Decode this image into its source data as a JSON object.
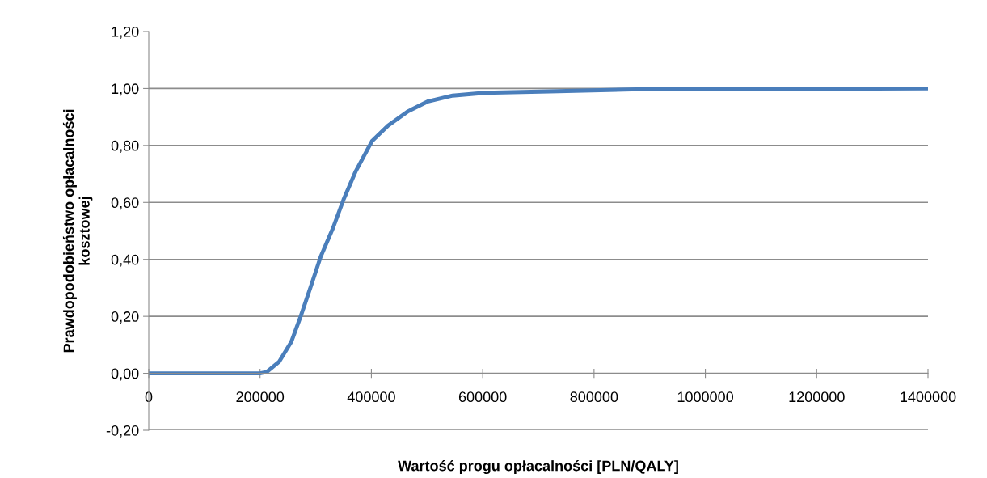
{
  "chart_data": {
    "type": "line",
    "xlabel": "Wartość progu opłacalności [PLN/QALY]",
    "ylabel": "Prawdopodobieństwo opłacalności\nkosztowej",
    "x": [
      0,
      200000,
      212000,
      234000,
      256000,
      273000,
      292000,
      309000,
      331000,
      350000,
      372000,
      401000,
      430000,
      466000,
      502000,
      546000,
      604000,
      720000,
      895000,
      1400000
    ],
    "series": [
      {
        "color": "#4a7ebb",
        "values": [
          0,
          0,
          0.005,
          0.04,
          0.11,
          0.2,
          0.31,
          0.41,
          0.51,
          0.61,
          0.71,
          0.815,
          0.87,
          0.92,
          0.955,
          0.975,
          0.985,
          0.99,
          0.998,
          1.0
        ]
      }
    ],
    "xlim": [
      0,
      1400000
    ],
    "xticks": [
      0,
      200000,
      400000,
      600000,
      800000,
      1000000,
      1200000,
      1400000
    ],
    "ylim": [
      -0.2,
      1.2
    ],
    "yticks": [
      {
        "value": -0.2,
        "label": "-0,20"
      },
      {
        "value": 0,
        "label": "0,00"
      },
      {
        "value": 0.2,
        "label": "0,20"
      },
      {
        "value": 0.4,
        "label": "0,40"
      },
      {
        "value": 0.6,
        "label": "0,60"
      },
      {
        "value": 0.8,
        "label": "0,80"
      },
      {
        "value": 1.0,
        "label": "1,00"
      },
      {
        "value": 1.2,
        "label": "1,20"
      }
    ],
    "grid": "y",
    "legend": false,
    "marker": "none",
    "line_style": "solid"
  }
}
